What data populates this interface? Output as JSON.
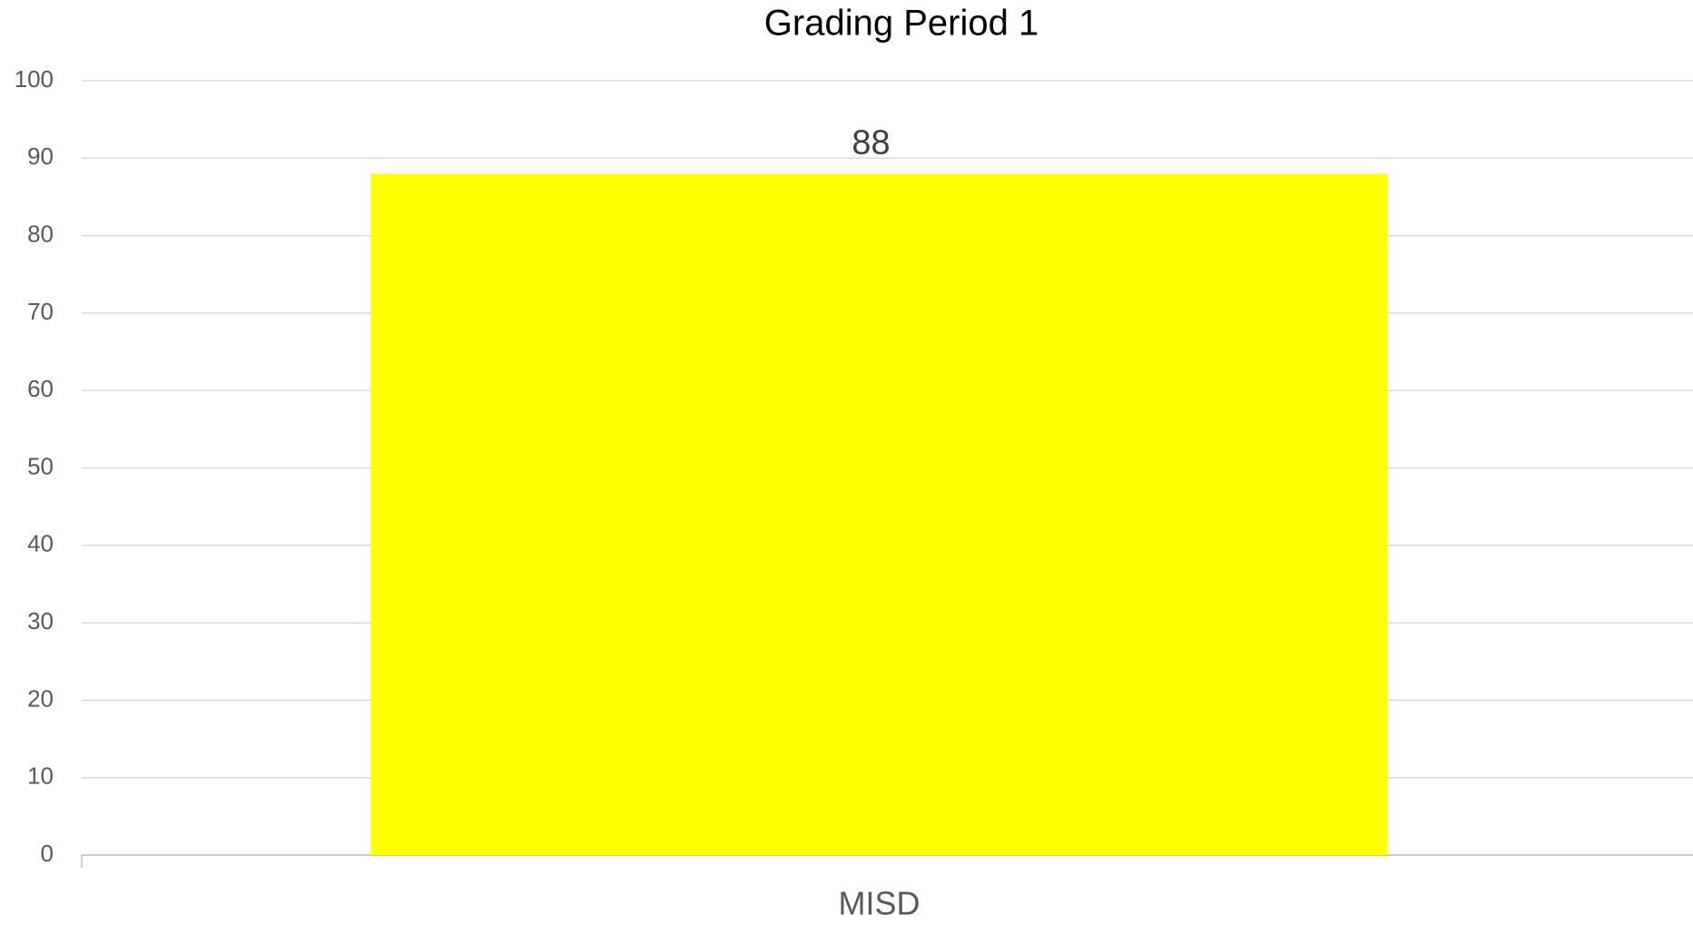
{
  "chart_data": {
    "type": "bar",
    "title": "Grading Period 1",
    "categories": [
      "MISD"
    ],
    "values": [
      88
    ],
    "color": "#ffff00",
    "ylim": [
      0,
      100
    ],
    "yticks": [
      0,
      10,
      20,
      30,
      40,
      50,
      60,
      70,
      80,
      90,
      100
    ],
    "grid": true
  }
}
